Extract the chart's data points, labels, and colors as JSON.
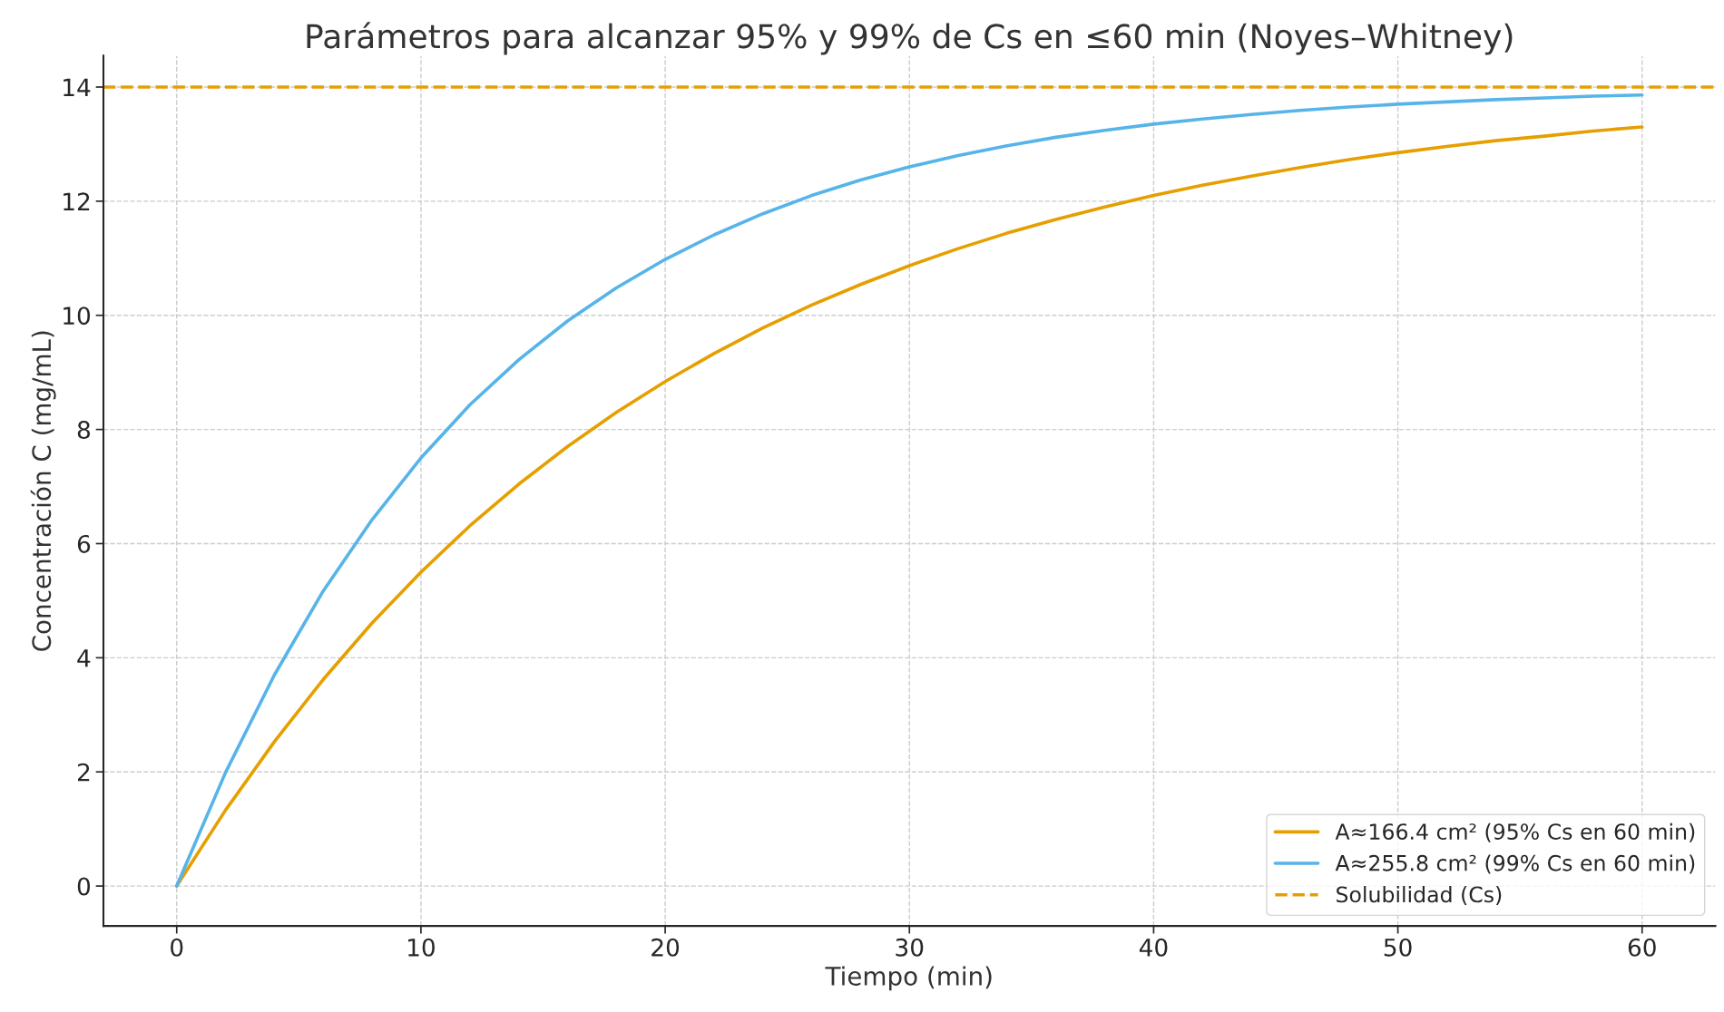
{
  "chart_data": {
    "type": "line",
    "title": "Parámetros para alcanzar 95% y 99% de Cs en ≤60 min (Noyes–Whitney)",
    "xlabel": "Tiempo (min)",
    "ylabel": "Concentración C (mg/mL)",
    "x": [
      0,
      2,
      4,
      6,
      8,
      10,
      12,
      14,
      16,
      18,
      20,
      22,
      24,
      26,
      28,
      30,
      32,
      34,
      36,
      38,
      40,
      42,
      44,
      46,
      48,
      50,
      52,
      54,
      56,
      58,
      60
    ],
    "series": [
      {
        "name": "A≈166.4 cm² (95% Cs en 60 min)",
        "color": "#e69f00",
        "values": [
          0,
          1.33,
          2.53,
          3.62,
          4.61,
          5.5,
          6.31,
          7.04,
          7.7,
          8.3,
          8.84,
          9.33,
          9.78,
          10.18,
          10.54,
          10.87,
          11.17,
          11.44,
          11.68,
          11.9,
          12.1,
          12.28,
          12.44,
          12.59,
          12.73,
          12.85,
          12.96,
          13.06,
          13.14,
          13.23,
          13.3
        ]
      },
      {
        "name": "A≈255.8 cm² (99% Cs en 60 min)",
        "color": "#56b4e9",
        "values": [
          0,
          1.99,
          3.7,
          5.17,
          6.42,
          7.5,
          8.43,
          9.22,
          9.9,
          10.48,
          10.98,
          11.41,
          11.78,
          12.1,
          12.37,
          12.6,
          12.8,
          12.97,
          13.12,
          13.24,
          13.35,
          13.44,
          13.52,
          13.59,
          13.65,
          13.7,
          13.74,
          13.78,
          13.81,
          13.84,
          13.86
        ]
      }
    ],
    "ref_lines": [
      {
        "axis": "y",
        "value": 14,
        "label": "Solubilidad (Cs)",
        "color": "#e69f00",
        "line_style": "dashed"
      }
    ],
    "xlim": [
      -3,
      63
    ],
    "ylim": [
      -0.7,
      14.55
    ],
    "xticks": [
      0,
      10,
      20,
      30,
      40,
      50,
      60
    ],
    "yticks": [
      0,
      2,
      4,
      6,
      8,
      10,
      12,
      14
    ],
    "grid": true,
    "legend": "bottom right",
    "line_style": "solid",
    "marker": "none"
  }
}
